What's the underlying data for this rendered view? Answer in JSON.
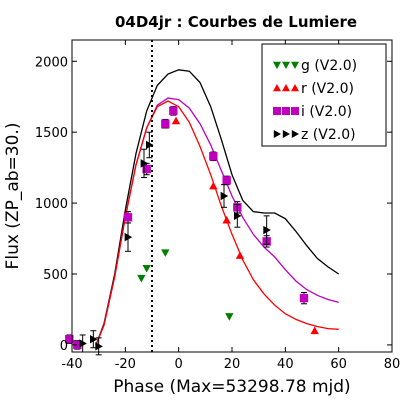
{
  "chart_data": {
    "type": "scatter",
    "title": "04D4jr : Courbes de Lumiere",
    "xlabel": "Phase (Max=53298.78 mjd)",
    "ylabel": "Flux (ZP_ab=30.)",
    "xlim": [
      -40,
      80
    ],
    "ylim": [
      -50,
      2150
    ],
    "x_ticks": [
      -40,
      -20,
      0,
      20,
      40,
      60,
      80
    ],
    "y_ticks": [
      0,
      500,
      1000,
      1500,
      2000
    ],
    "grid": false,
    "legend_position": "top-right",
    "max_phase_marker": -10,
    "series": [
      {
        "name": "g (V2.0)",
        "color": "#008000",
        "marker": "triangle-down",
        "points": [
          {
            "x": -38,
            "y": 10,
            "err": 0
          },
          {
            "x": -14,
            "y": 470,
            "err": 0
          },
          {
            "x": -12,
            "y": 540,
            "err": 0
          },
          {
            "x": -5,
            "y": 650,
            "err": 0
          },
          {
            "x": 19,
            "y": 200,
            "err": 0
          }
        ]
      },
      {
        "name": "r (V2.0)",
        "color": "#ff0000",
        "marker": "triangle-up",
        "points": [
          {
            "x": -5,
            "y": 1550,
            "err": 0
          },
          {
            "x": -1,
            "y": 1580,
            "err": 0
          },
          {
            "x": 13,
            "y": 1120,
            "err": 0
          },
          {
            "x": 18,
            "y": 880,
            "err": 0
          },
          {
            "x": 23,
            "y": 630,
            "err": 0
          },
          {
            "x": 51,
            "y": 100,
            "err": 0
          }
        ]
      },
      {
        "name": "i (V2.0)",
        "color": "#bf00bf",
        "marker": "square",
        "points": [
          {
            "x": -41,
            "y": 40,
            "err": 30
          },
          {
            "x": -38,
            "y": 0,
            "err": 30
          },
          {
            "x": -19,
            "y": 900,
            "err": 40
          },
          {
            "x": -12,
            "y": 1240,
            "err": 40
          },
          {
            "x": -5,
            "y": 1560,
            "err": 30
          },
          {
            "x": -2,
            "y": 1650,
            "err": 30
          },
          {
            "x": 13,
            "y": 1330,
            "err": 30
          },
          {
            "x": 18,
            "y": 1160,
            "err": 30
          },
          {
            "x": 22,
            "y": 970,
            "err": 40
          },
          {
            "x": 33,
            "y": 730,
            "err": 40
          },
          {
            "x": 47,
            "y": 330,
            "err": 40
          }
        ]
      },
      {
        "name": "z (V2.0)",
        "color": "#000000",
        "marker": "triangle-right",
        "points": [
          {
            "x": -36,
            "y": 10,
            "err": 60
          },
          {
            "x": -32,
            "y": 40,
            "err": 60
          },
          {
            "x": -30,
            "y": -10,
            "err": 60
          },
          {
            "x": -19,
            "y": 760,
            "err": 100
          },
          {
            "x": -13,
            "y": 1280,
            "err": 100
          },
          {
            "x": -11,
            "y": 1410,
            "err": 90
          },
          {
            "x": 17,
            "y": 1050,
            "err": 80
          },
          {
            "x": 22,
            "y": 910,
            "err": 80
          },
          {
            "x": 33,
            "y": 810,
            "err": 100
          }
        ]
      }
    ],
    "model_curves": [
      {
        "band": "z",
        "color": "#000000",
        "points": [
          [
            -31,
            0
          ],
          [
            -28,
            150
          ],
          [
            -24,
            500
          ],
          [
            -20,
            950
          ],
          [
            -16,
            1350
          ],
          [
            -12,
            1650
          ],
          [
            -8,
            1830
          ],
          [
            -4,
            1910
          ],
          [
            0,
            1940
          ],
          [
            4,
            1930
          ],
          [
            8,
            1850
          ],
          [
            12,
            1680
          ],
          [
            16,
            1450
          ],
          [
            20,
            1200
          ],
          [
            24,
            1020
          ],
          [
            28,
            940
          ],
          [
            32,
            930
          ],
          [
            36,
            930
          ],
          [
            40,
            890
          ],
          [
            44,
            800
          ],
          [
            48,
            700
          ],
          [
            52,
            610
          ],
          [
            56,
            550
          ],
          [
            60,
            500
          ]
        ]
      },
      {
        "band": "i",
        "color": "#bf00bf",
        "points": [
          [
            -31,
            0
          ],
          [
            -28,
            140
          ],
          [
            -24,
            480
          ],
          [
            -20,
            900
          ],
          [
            -16,
            1270
          ],
          [
            -12,
            1530
          ],
          [
            -8,
            1690
          ],
          [
            -4,
            1740
          ],
          [
            0,
            1730
          ],
          [
            4,
            1670
          ],
          [
            8,
            1560
          ],
          [
            12,
            1410
          ],
          [
            16,
            1230
          ],
          [
            20,
            1050
          ],
          [
            24,
            900
          ],
          [
            28,
            780
          ],
          [
            32,
            690
          ],
          [
            36,
            620
          ],
          [
            40,
            530
          ],
          [
            44,
            450
          ],
          [
            48,
            390
          ],
          [
            52,
            350
          ],
          [
            56,
            320
          ],
          [
            60,
            300
          ]
        ]
      },
      {
        "band": "r",
        "color": "#ff0000",
        "points": [
          [
            -31,
            0
          ],
          [
            -28,
            140
          ],
          [
            -24,
            480
          ],
          [
            -20,
            900
          ],
          [
            -16,
            1270
          ],
          [
            -12,
            1530
          ],
          [
            -8,
            1680
          ],
          [
            -4,
            1720
          ],
          [
            0,
            1680
          ],
          [
            4,
            1570
          ],
          [
            8,
            1400
          ],
          [
            12,
            1200
          ],
          [
            16,
            980
          ],
          [
            20,
            780
          ],
          [
            24,
            600
          ],
          [
            28,
            460
          ],
          [
            32,
            360
          ],
          [
            36,
            280
          ],
          [
            40,
            220
          ],
          [
            44,
            180
          ],
          [
            48,
            150
          ],
          [
            52,
            130
          ],
          [
            56,
            115
          ],
          [
            60,
            110
          ]
        ]
      }
    ]
  }
}
